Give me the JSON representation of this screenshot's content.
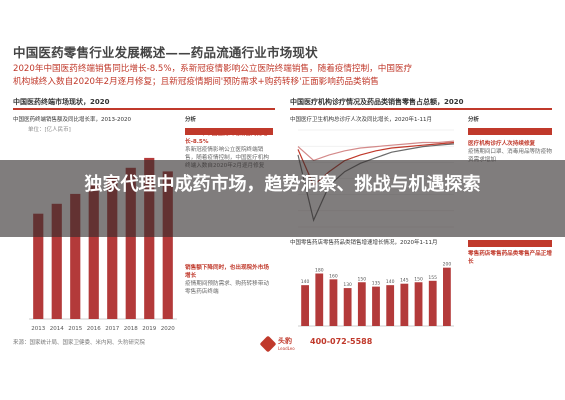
{
  "doc": {
    "title": "中国医药零售行业发展概述——药品流通行业市场现状",
    "line1": "2020年中国医药终端销售同比增长-8.5%，系新冠疫情影响公立医院终端销售，随着疫情控制，中国医疗",
    "line2": "机构城终入数自2020年2月逐月修复；且新冠疫情期间'预防需求+购药转移'正面影响药品类销售"
  },
  "left_panel": {
    "title": "中国医药终端市场现状，2020",
    "subtitle": "中国医药终端销售额及同比增长率，2013-2020",
    "unit": "单位：[亿人民币]",
    "analysis_label": "分析",
    "analysis_heading": "2020年中国医药终端销售同比增长-8.5%",
    "analysis_text": "系新冠疫情影响公立医院终端销售，随着疫情控制，中国医疗机构终端入数自2020年2月逐月修复",
    "analysis_heading2": "销售额下降同时，也出现院外市场增长",
    "analysis_text2": "疫情期间预防需求、购药转移带动零售药店终端"
  },
  "right_panel": {
    "title": "中国医疗机构诊疗情况及药品类销售零售占总额，2020",
    "top_subtitle": "中国医疗卫生机构总诊疗人次及同比增长，2020年1-11月",
    "bottom_subtitle": "中国零售药店零售药品类销售增速增长情况，2020年1-11月",
    "analysis_label": "分析",
    "side_heading1": "医疗机构诊疗人次持续修复",
    "side_heading2": "零售药店零售药品类零售产品正增长",
    "side_text": "疫情期间口罩、消毒用品等防疫物资需求增加"
  },
  "footer": {
    "source": "来源：国家统计局、国家卫健委、米内网、头豹研究院",
    "brand": "头豹",
    "brand_sub": "LeadLeo",
    "phone": "400-072-5588"
  },
  "overlay": {
    "headline": "独家代理中成药市场，趋势洞察、挑战与机遇探索"
  },
  "chart_data": [
    {
      "type": "bar",
      "categories": [
        "2013",
        "2014",
        "2015",
        "2016",
        "2017",
        "2018",
        "2019",
        "2020"
      ],
      "series": [
        {
          "values": [
            11700,
            12800,
            13900,
            14900,
            15900,
            16800,
            17900,
            16400
          ]
        }
      ],
      "x_tick_labels": [
        "2013",
        "2014",
        "2015",
        "2016",
        "2017",
        "2018",
        "2019",
        "2020"
      ],
      "ylim": [
        0,
        20000
      ],
      "grid": false,
      "color": "#b33a3a"
    },
    {
      "type": "line",
      "x": [
        "1",
        "2",
        "3",
        "4",
        "5",
        "6",
        "7",
        "8",
        "9",
        "10",
        "11"
      ],
      "series": [
        {
          "values": [
            -8,
            -55,
            -30,
            -20,
            -14,
            -10,
            -6,
            -4,
            -2,
            -1,
            0
          ]
        },
        {
          "values": [
            -4,
            -30,
            -20,
            -12,
            -8,
            -5,
            -3,
            -2,
            -1,
            0,
            1
          ]
        },
        {
          "values": [
            -2,
            -12,
            -8,
            -5,
            -3,
            -2,
            -1,
            0,
            1,
            1,
            2
          ]
        }
      ],
      "colors": [
        "#6a6a6a",
        "#c0392b",
        "#d48a8a"
      ],
      "grid": true
    },
    {
      "type": "bar",
      "categories": [
        "1",
        "2",
        "3",
        "4",
        "5",
        "6",
        "7",
        "8",
        "9",
        "10",
        "11"
      ],
      "series": [
        {
          "values": [
            140,
            180,
            160,
            130,
            150,
            135,
            140,
            145,
            150,
            155,
            200
          ]
        }
      ],
      "data_labels": [
        "140",
        "180",
        "160",
        "130",
        "150",
        "135",
        "140",
        "145",
        "150",
        "155",
        "200"
      ],
      "ylim": [
        0,
        240
      ],
      "color": "#b33a3a"
    }
  ]
}
